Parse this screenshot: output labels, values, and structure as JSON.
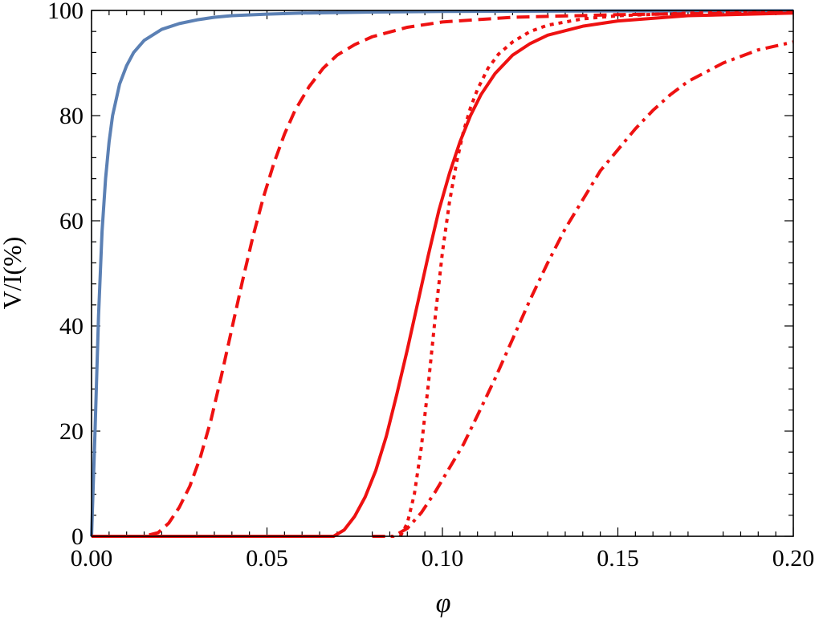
{
  "chart_data": {
    "type": "line",
    "title": "",
    "xlabel": "φ",
    "ylabel": "V/I(%)",
    "xlim": [
      0,
      0.2
    ],
    "ylim": [
      0,
      100
    ],
    "x_ticks": [
      "0.00",
      "0.05",
      "0.10",
      "0.15",
      "0.20"
    ],
    "y_ticks": [
      "0",
      "20",
      "40",
      "60",
      "80",
      "100"
    ],
    "grid": false,
    "legend": "none",
    "series": [
      {
        "color": "#5b80b4",
        "style": "solid",
        "x": [
          0,
          0.001,
          0.002,
          0.003,
          0.004,
          0.005,
          0.006,
          0.008,
          0.01,
          0.012,
          0.015,
          0.02,
          0.025,
          0.03,
          0.035,
          0.04,
          0.05,
          0.06,
          0.08,
          0.1,
          0.12,
          0.15,
          0.2
        ],
        "y": [
          0,
          20,
          42,
          58,
          68,
          75,
          80,
          86,
          89.5,
          92,
          94.3,
          96.4,
          97.5,
          98.2,
          98.7,
          99,
          99.3,
          99.5,
          99.7,
          99.8,
          99.85,
          99.9,
          99.95
        ]
      },
      {
        "color": "#ee1111",
        "style": "dashed",
        "x": [
          0,
          0.015,
          0.019,
          0.022,
          0.025,
          0.028,
          0.031,
          0.034,
          0.037,
          0.04,
          0.043,
          0.046,
          0.049,
          0.052,
          0.055,
          0.058,
          0.062,
          0.066,
          0.07,
          0.075,
          0.08,
          0.09,
          0.1,
          0.12,
          0.15,
          0.2
        ],
        "y": [
          0,
          0,
          0.7,
          2.5,
          5.5,
          9.5,
          15,
          22,
          30.5,
          39.5,
          48.5,
          57,
          64.5,
          71,
          76.5,
          81,
          85.5,
          89,
          91.5,
          93.5,
          95,
          96.8,
          97.8,
          98.7,
          99.2,
          99.6
        ]
      },
      {
        "color": "#ee1111",
        "style": "solid",
        "x": [
          0,
          0.069,
          0.072,
          0.075,
          0.078,
          0.081,
          0.084,
          0.087,
          0.09,
          0.093,
          0.096,
          0.099,
          0.102,
          0.105,
          0.108,
          0.111,
          0.115,
          0.12,
          0.125,
          0.13,
          0.14,
          0.15,
          0.17,
          0.2
        ],
        "y": [
          0,
          0,
          1.2,
          3.8,
          7.5,
          12.5,
          19,
          27,
          35.5,
          44.5,
          53.5,
          62,
          69,
          75,
          80,
          84,
          88,
          91.5,
          93.7,
          95.3,
          97,
          98,
          99,
          99.5
        ]
      },
      {
        "color": "#ee1111",
        "style": "dotted",
        "x": [
          0.088,
          0.09,
          0.092,
          0.094,
          0.096,
          0.098,
          0.1,
          0.102,
          0.104,
          0.106,
          0.108,
          0.11,
          0.113,
          0.116,
          0.12,
          0.125,
          0.13,
          0.14,
          0.15,
          0.17,
          0.2
        ],
        "y": [
          0,
          2.5,
          8,
          17,
          29,
          42,
          54,
          63.5,
          71,
          77,
          81.5,
          85,
          89,
          91.7,
          94,
          96,
          97.2,
          98.4,
          99,
          99.5,
          99.7
        ]
      },
      {
        "color": "#ee1111",
        "style": "dashdot",
        "x": [
          0.08,
          0.086,
          0.09,
          0.094,
          0.098,
          0.102,
          0.106,
          0.11,
          0.115,
          0.12,
          0.125,
          0.13,
          0.135,
          0.14,
          0.145,
          0.15,
          0.155,
          0.16,
          0.165,
          0.17,
          0.18,
          0.19,
          0.2
        ],
        "y": [
          0,
          0,
          1.5,
          4.5,
          8.5,
          13,
          17.5,
          23,
          30,
          37.5,
          45,
          52,
          58.5,
          64,
          69.5,
          73.5,
          77.5,
          81,
          84,
          86.5,
          90,
          92.5,
          94
        ]
      }
    ]
  }
}
